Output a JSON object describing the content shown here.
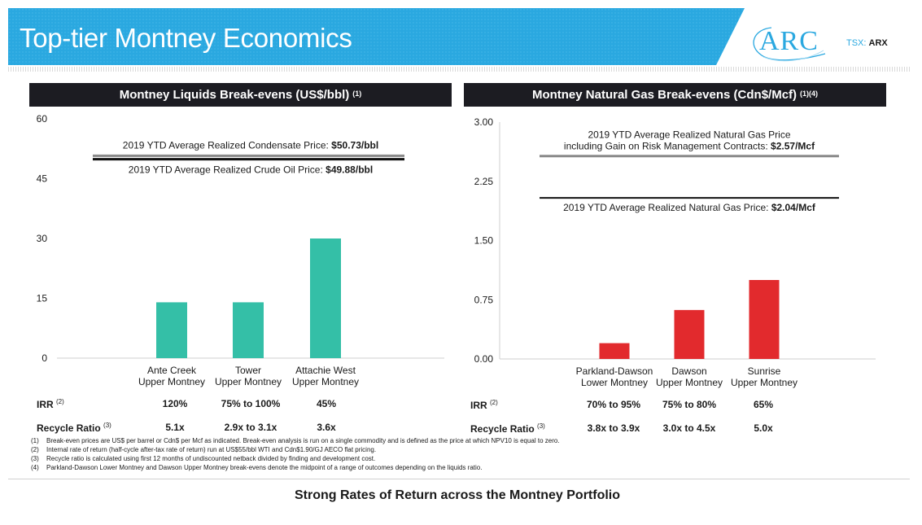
{
  "title": "Top-tier Montney Economics",
  "logo": {
    "name": "ARC",
    "ticker_prefix": "TSX:",
    "ticker": "ARX"
  },
  "colors": {
    "banner": "#2aa8e0",
    "liquids": "#34bfa7",
    "gas": "#e22a2d",
    "header": "#1c1c22"
  },
  "chart_data": [
    {
      "type": "bar",
      "title": "Montney Liquids Break-evens (US$/bbl)",
      "title_sup": "(1)",
      "categories": [
        [
          "Ante Creek",
          "Upper Montney"
        ],
        [
          "Tower",
          "Upper Montney"
        ],
        [
          "Attachie West",
          "Upper Montney"
        ]
      ],
      "values": [
        14,
        14,
        30
      ],
      "ylim": [
        0,
        60
      ],
      "yticks": [
        "0",
        "15",
        "30",
        "45",
        "60"
      ],
      "ytick_values": [
        0,
        15,
        30,
        45,
        60
      ],
      "color": "#34bfa7",
      "reference_lines": [
        {
          "value": 50.73,
          "label": "2019 YTD Average Realized Condensate Price: ",
          "label_bold": "$50.73/bbl",
          "color": "#8a8a8a"
        },
        {
          "value": 49.88,
          "label": "2019 YTD Average Realized Crude Oil Price: ",
          "label_bold": "$49.88/bbl",
          "color": "#111111"
        }
      ],
      "metrics": [
        {
          "label": "IRR",
          "sup": "(2)",
          "values": [
            "120%",
            "75% to 100%",
            "45%"
          ]
        },
        {
          "label": "Recycle Ratio",
          "sup": "(3)",
          "values": [
            "5.1x",
            "2.9x to 3.1x",
            "3.6x"
          ]
        }
      ]
    },
    {
      "type": "bar",
      "title": "Montney Natural Gas Break-evens (Cdn$/Mcf)",
      "title_sup": "(1)(4)",
      "categories": [
        [
          "Parkland-Dawson",
          "Lower Montney"
        ],
        [
          "Dawson",
          "Upper Montney"
        ],
        [
          "Sunrise",
          "Upper Montney"
        ]
      ],
      "values": [
        0.2,
        0.62,
        1.0
      ],
      "ylim": [
        0,
        3.0
      ],
      "yticks": [
        "0.00",
        "0.75",
        "1.50",
        "2.25",
        "3.00"
      ],
      "ytick_values": [
        0,
        0.75,
        1.5,
        2.25,
        3.0
      ],
      "color": "#e22a2d",
      "reference_lines": [
        {
          "value": 2.57,
          "label_lines": [
            "2019 YTD Average Realized Natural Gas Price"
          ],
          "label": "including Gain on Risk Management Contracts: ",
          "label_bold": "$2.57/Mcf",
          "color": "#8a8a8a"
        },
        {
          "value": 2.04,
          "label": "2019 YTD Average Realized Natural Gas Price: ",
          "label_bold": "$2.04/Mcf",
          "color": "#111111"
        }
      ],
      "metrics": [
        {
          "label": "IRR",
          "sup": "(2)",
          "values": [
            "70% to 95%",
            "75% to 80%",
            "65%"
          ]
        },
        {
          "label": "Recycle Ratio",
          "sup": "(3)",
          "values": [
            "3.8x to 3.9x",
            "3.0x to 4.5x",
            "5.0x"
          ]
        }
      ]
    }
  ],
  "footnotes": [
    {
      "num": "(1)",
      "text": "Break-even prices are US$ per barrel or Cdn$ per Mcf as indicated. Break-even analysis is run on a single commodity and is defined as the price at which NPV10 is equal to zero."
    },
    {
      "num": "(2)",
      "text": "Internal rate of return (half-cycle after-tax rate of return) run at US$55/bbl WTI and Cdn$1.90/GJ AECO flat pricing."
    },
    {
      "num": "(3)",
      "text": "Recycle ratio is calculated using first 12 months of undiscounted netback divided by finding and development cost."
    },
    {
      "num": "(4)",
      "text": "Parkland-Dawson Lower Montney and Dawson Upper Montney break-evens denote the midpoint of a range of outcomes depending on the liquids ratio."
    }
  ],
  "tagline": "Strong Rates of Return across the Montney Portfolio"
}
